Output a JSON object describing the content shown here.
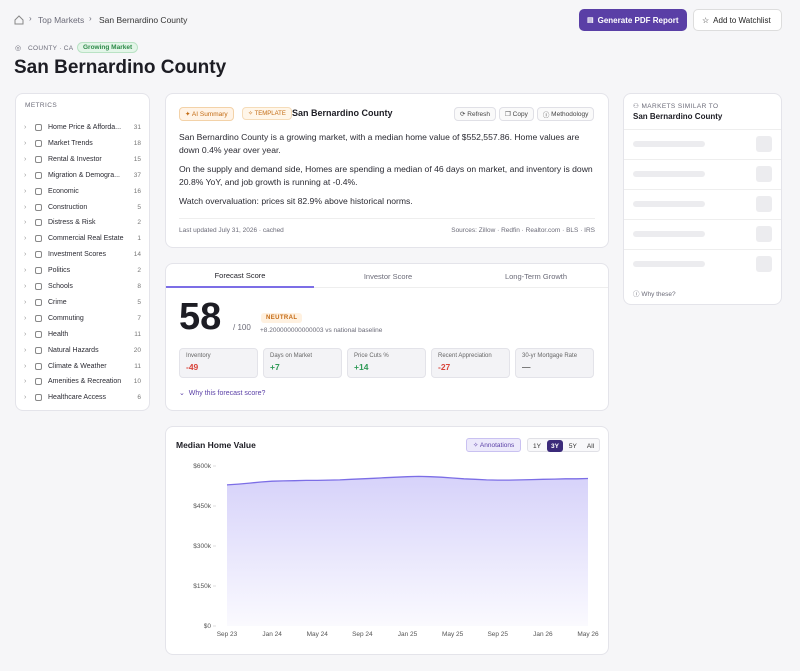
{
  "breadcrumb": [
    "Top Markets",
    "San Bernardino County"
  ],
  "header": {
    "actions": [
      "Generate PDF Report",
      "Add to Watchlist"
    ],
    "location": "COUNTY · CA",
    "badge": "Growing Market",
    "title": "San Bernardino County"
  },
  "metrics": {
    "heading": "METRICS",
    "items": [
      {
        "label": "Home Price & Afforda...",
        "count": 31
      },
      {
        "label": "Market Trends",
        "count": 18
      },
      {
        "label": "Rental & Investor",
        "count": 15
      },
      {
        "label": "Migration & Demogra...",
        "count": 37
      },
      {
        "label": "Economic",
        "count": 16
      },
      {
        "label": "Construction",
        "count": 5
      },
      {
        "label": "Distress & Risk",
        "count": 2
      },
      {
        "label": "Commercial Real Estate",
        "count": 1
      },
      {
        "label": "Investment Scores",
        "count": 14
      },
      {
        "label": "Politics",
        "count": 2
      },
      {
        "label": "Schools",
        "count": 8
      },
      {
        "label": "Crime",
        "count": 5
      },
      {
        "label": "Commuting",
        "count": 7
      },
      {
        "label": "Health",
        "count": 11
      },
      {
        "label": "Natural Hazards",
        "count": 20
      },
      {
        "label": "Climate & Weather",
        "count": 11
      },
      {
        "label": "Amenities & Recreation",
        "count": 10
      },
      {
        "label": "Healthcare Access",
        "count": 6
      }
    ]
  },
  "summary": {
    "badges": [
      "AI Summary",
      "TEMPLATE"
    ],
    "title": "San Bernardino County",
    "actions": [
      "Refresh",
      "Copy",
      "Methodology"
    ],
    "paragraphs": [
      "San Bernardino County is a growing market, with a median home value of $552,557.86. Home values are down 0.4% year over year.",
      "On the supply and demand side, Homes are spending a median of 46 days on market, and inventory is down 20.8% YoY, and job growth is running at -0.4%.",
      "Watch overvaluation: prices sit 82.9% above historical norms."
    ],
    "updated": "Last updated July 31, 2026 · cached",
    "sources": "Sources: Zillow · Redfin · Realtor.com · BLS · IRS"
  },
  "scores": {
    "tabs": [
      "Forecast Score",
      "Investor Score",
      "Long-Term Growth"
    ],
    "score": 58,
    "out_of": "/ 100",
    "rating": "NEUTRAL",
    "delta": "+8.200000000000003 vs national baseline",
    "stats": [
      {
        "label": "Inventory",
        "value": "-49"
      },
      {
        "label": "Days on Market",
        "value": "+7"
      },
      {
        "label": "Price Cuts %",
        "value": "+14"
      },
      {
        "label": "Recent Appreciation",
        "value": "-27"
      },
      {
        "label": "30-yr Mortgage Rate",
        "value": "—"
      }
    ],
    "link": "Why this forecast score?"
  },
  "similar": {
    "heading": "MARKETS SIMILAR TO",
    "title": "San Bernardino County",
    "link": "Why these?"
  },
  "chart_controls": {
    "annotations": "Annotations",
    "ranges": [
      "1Y",
      "3Y",
      "5Y",
      "All"
    ],
    "active_range": "3Y"
  },
  "chart_data": {
    "type": "area",
    "title": "Median Home Value",
    "color": "#7c6ee6",
    "categories": [
      "Sep 23",
      null,
      null,
      null,
      "Jan 24",
      null,
      null,
      null,
      "May 24",
      null,
      null,
      null,
      "Sep 24",
      null,
      null,
      null,
      "Jan 25",
      null,
      null,
      null,
      "May 25",
      null,
      null,
      null,
      "Sep 25",
      null,
      null,
      null,
      "Jan 26",
      null,
      null,
      null,
      "May 26"
    ],
    "values": [
      529000,
      532000,
      536000,
      540000,
      543000,
      544000,
      545000,
      546000,
      546000,
      547000,
      548000,
      550000,
      552000,
      554000,
      556000,
      558000,
      560000,
      561000,
      560000,
      558000,
      555000,
      552000,
      550000,
      548000,
      547000,
      547000,
      548000,
      549000,
      550000,
      551000,
      552000,
      552000,
      553000
    ],
    "ylim": [
      0,
      600000
    ],
    "yticks": [
      {
        "value": 0,
        "label": "$0"
      },
      {
        "value": 150000,
        "label": "$150k"
      },
      {
        "value": 300000,
        "label": "$300k"
      },
      {
        "value": 450000,
        "label": "$450k"
      },
      {
        "value": 600000,
        "label": "$600k"
      }
    ],
    "grid": false
  }
}
